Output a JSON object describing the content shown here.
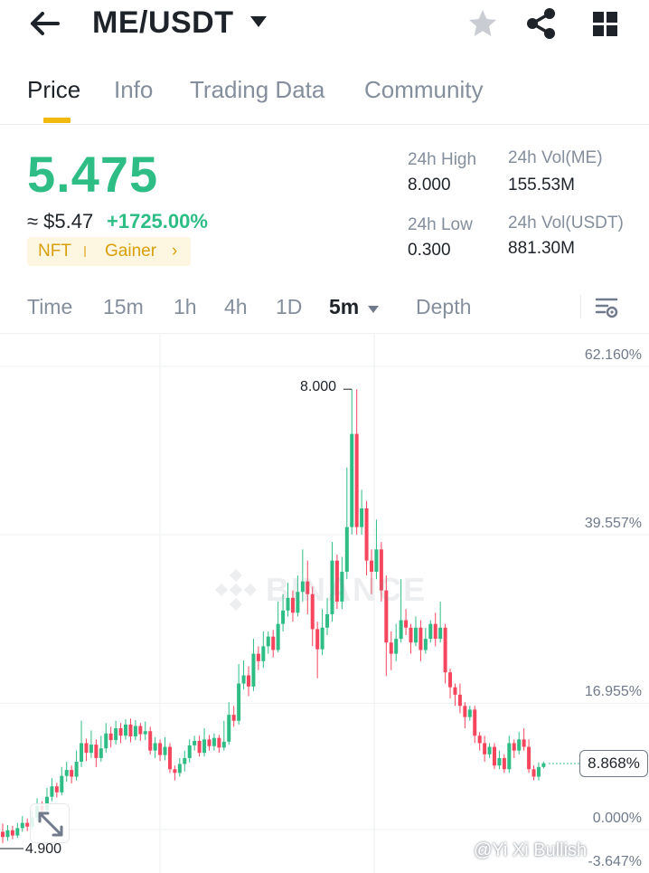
{
  "header": {
    "pair": "ME/USDT",
    "icons": [
      "back-arrow-icon",
      "caret-down-icon",
      "star-icon",
      "share-icon",
      "grid-icon"
    ]
  },
  "tabs": [
    {
      "label": "Price",
      "active": true
    },
    {
      "label": "Info",
      "active": false
    },
    {
      "label": "Trading Data",
      "active": false
    },
    {
      "label": "Community",
      "active": false
    }
  ],
  "price": {
    "last": "5.475",
    "fiat": "≈ $5.47",
    "change": "+1725.00%",
    "up_color": "#2ebd85",
    "down_color": "#f6465d"
  },
  "badges": {
    "nft": "NFT",
    "gainer": "Gainer",
    "chevron": "›"
  },
  "stats": {
    "high_label": "24h High",
    "high_value": "8.000",
    "low_label": "24h Low",
    "low_value": "0.300",
    "vol_base_label": "24h Vol(ME)",
    "vol_base_value": "155.53M",
    "vol_quote_label": "24h Vol(USDT)",
    "vol_quote_value": "881.30M"
  },
  "intervals": {
    "time": "Time",
    "m15": "15m",
    "h1": "1h",
    "h4": "4h",
    "d1": "1D",
    "selected": "5m",
    "depth": "Depth"
  },
  "chart": {
    "y_labels": [
      "62.160%",
      "39.557%",
      "16.955%",
      "0.000%",
      "-3.647%"
    ],
    "current": "8.868%",
    "high_marker": "8.000",
    "low_marker": "4.900",
    "watermark": "BINANCE",
    "credit": "@Yi Xi Bullish",
    "accent": "#f0b90b"
  },
  "chart_data": {
    "type": "candlestick",
    "y_unit": "%",
    "y_ticks": [
      62.16,
      39.557,
      16.955,
      0.0,
      -3.647
    ],
    "current": 8.868,
    "candles": [
      [
        -0.3,
        -1.0,
        0.8,
        -1.8
      ],
      [
        -1.0,
        -0.1,
        0.6,
        -1.5
      ],
      [
        -0.1,
        -0.8,
        0.5,
        -1.3
      ],
      [
        -0.8,
        0.2,
        0.9,
        -1.1
      ],
      [
        0.2,
        0.9,
        1.8,
        -0.3
      ],
      [
        0.9,
        0.4,
        1.5,
        -0.2
      ],
      [
        0.4,
        1.6,
        2.4,
        0.0
      ],
      [
        1.6,
        3.2,
        4.2,
        1.2
      ],
      [
        3.2,
        2.6,
        3.8,
        1.9
      ],
      [
        2.6,
        4.4,
        5.6,
        2.1
      ],
      [
        4.4,
        5.8,
        6.9,
        3.8
      ],
      [
        5.8,
        5.0,
        6.3,
        4.3
      ],
      [
        5.0,
        7.2,
        8.4,
        4.6
      ],
      [
        7.2,
        8.0,
        9.1,
        6.4
      ],
      [
        8.0,
        7.1,
        8.6,
        6.2
      ],
      [
        7.1,
        9.1,
        10.6,
        6.6
      ],
      [
        9.1,
        11.6,
        14.6,
        8.4
      ],
      [
        11.6,
        10.3,
        12.2,
        9.2
      ],
      [
        10.3,
        11.4,
        13.3,
        9.6
      ],
      [
        11.4,
        9.6,
        12.1,
        8.4
      ],
      [
        9.6,
        10.9,
        12.6,
        9.1
      ],
      [
        10.9,
        12.9,
        14.3,
        10.3
      ],
      [
        12.9,
        12.0,
        13.8,
        11.0
      ],
      [
        12.0,
        13.6,
        14.6,
        11.4
      ],
      [
        13.6,
        12.6,
        14.3,
        11.6
      ],
      [
        12.6,
        14.1,
        14.8,
        12.1
      ],
      [
        14.1,
        12.5,
        14.9,
        11.7
      ],
      [
        12.5,
        13.9,
        14.7,
        12.0
      ],
      [
        13.9,
        12.8,
        14.3,
        11.9
      ],
      [
        12.8,
        13.2,
        14.5,
        12.0
      ],
      [
        13.2,
        10.6,
        13.8,
        10.1
      ],
      [
        10.6,
        11.6,
        12.4,
        9.6
      ],
      [
        11.6,
        10.0,
        12.1,
        9.2
      ],
      [
        10.0,
        11.1,
        12.4,
        9.3
      ],
      [
        11.1,
        8.1,
        11.6,
        7.6
      ],
      [
        8.1,
        7.6,
        8.6,
        6.6
      ],
      [
        7.6,
        8.8,
        9.6,
        7.1
      ],
      [
        8.8,
        9.6,
        10.6,
        7.8
      ],
      [
        9.6,
        11.3,
        12.1,
        9.0
      ],
      [
        11.3,
        11.9,
        12.6,
        10.6
      ],
      [
        11.9,
        10.3,
        12.6,
        9.8
      ],
      [
        10.3,
        12.1,
        13.6,
        9.8
      ],
      [
        12.1,
        11.2,
        12.7,
        10.6
      ],
      [
        11.2,
        12.3,
        12.9,
        10.6
      ],
      [
        12.3,
        11.0,
        12.7,
        10.3
      ],
      [
        11.0,
        11.8,
        14.6,
        10.6
      ],
      [
        11.8,
        15.4,
        17.1,
        11.4
      ],
      [
        15.4,
        14.6,
        16.6,
        13.8
      ],
      [
        14.6,
        19.6,
        22.2,
        14.1
      ],
      [
        19.6,
        20.7,
        22.7,
        18.8
      ],
      [
        20.7,
        19.2,
        21.9,
        17.9
      ],
      [
        19.2,
        23.6,
        25.6,
        18.6
      ],
      [
        23.6,
        22.6,
        24.6,
        21.4
      ],
      [
        22.6,
        24.6,
        26.6,
        21.7
      ],
      [
        24.6,
        25.9,
        26.6,
        23.6
      ],
      [
        25.9,
        24.1,
        26.8,
        23.1
      ],
      [
        24.1,
        27.6,
        30.6,
        23.8
      ],
      [
        27.6,
        29.4,
        31.6,
        26.6
      ],
      [
        29.4,
        31.1,
        33.1,
        28.6
      ],
      [
        31.1,
        29.1,
        32.1,
        27.9
      ],
      [
        29.1,
        31.9,
        34.1,
        28.6
      ],
      [
        31.9,
        33.3,
        37.6,
        30.6
      ],
      [
        33.3,
        31.6,
        36.1,
        28.9
      ],
      [
        31.6,
        26.9,
        32.6,
        24.6
      ],
      [
        26.9,
        24.2,
        27.9,
        20.3
      ],
      [
        24.2,
        27.1,
        29.6,
        23.4
      ],
      [
        27.1,
        28.9,
        31.1,
        26.1
      ],
      [
        28.9,
        36.1,
        38.6,
        27.9
      ],
      [
        36.1,
        30.6,
        36.9,
        29.6
      ],
      [
        30.6,
        34.6,
        36.6,
        29.6
      ],
      [
        34.6,
        40.6,
        48.6,
        33.6
      ],
      [
        40.6,
        53.1,
        59.1,
        39.6
      ],
      [
        53.1,
        40.6,
        59.1,
        39.6
      ],
      [
        40.6,
        43.1,
        45.6,
        39.6
      ],
      [
        43.1,
        36.1,
        44.1,
        34.1
      ],
      [
        36.1,
        34.6,
        37.6,
        31.6
      ],
      [
        34.6,
        37.6,
        41.6,
        33.6
      ],
      [
        37.6,
        32.1,
        38.6,
        30.6
      ],
      [
        32.1,
        25.1,
        34.1,
        20.6
      ],
      [
        25.1,
        23.6,
        26.6,
        21.4
      ],
      [
        23.6,
        25.6,
        27.6,
        22.6
      ],
      [
        25.6,
        28.1,
        33.6,
        25.1
      ],
      [
        28.1,
        27.1,
        29.6,
        26.1
      ],
      [
        27.1,
        25.1,
        27.6,
        23.6
      ],
      [
        25.1,
        27.1,
        28.6,
        24.6
      ],
      [
        27.1,
        24.1,
        28.1,
        22.6
      ],
      [
        24.1,
        25.6,
        27.1,
        23.6
      ],
      [
        25.6,
        27.6,
        28.1,
        25.1
      ],
      [
        27.6,
        25.6,
        29.1,
        24.6
      ],
      [
        25.6,
        27.1,
        30.6,
        25.1
      ],
      [
        27.1,
        21.1,
        27.6,
        19.6
      ],
      [
        21.1,
        19.1,
        21.6,
        17.6
      ],
      [
        19.1,
        18.1,
        19.6,
        16.6
      ],
      [
        18.1,
        16.6,
        19.6,
        15.6
      ],
      [
        16.6,
        15.1,
        17.1,
        13.6
      ],
      [
        15.1,
        16.1,
        16.6,
        14.6
      ],
      [
        16.1,
        12.6,
        16.6,
        11.6
      ],
      [
        12.6,
        11.6,
        13.1,
        10.6
      ],
      [
        11.6,
        10.1,
        12.6,
        9.1
      ],
      [
        10.1,
        11.1,
        11.6,
        9.6
      ],
      [
        11.1,
        8.6,
        11.6,
        8.1
      ],
      [
        8.6,
        9.6,
        10.6,
        8.1
      ],
      [
        9.6,
        8.1,
        10.1,
        7.6
      ],
      [
        8.1,
        11.6,
        12.6,
        7.6
      ],
      [
        11.6,
        10.6,
        12.1,
        9.6
      ],
      [
        10.6,
        12.1,
        13.1,
        10.1
      ],
      [
        12.1,
        11.1,
        13.6,
        10.6
      ],
      [
        11.1,
        8.1,
        12.1,
        7.6
      ],
      [
        8.1,
        7.1,
        8.6,
        6.6
      ],
      [
        7.1,
        8.4,
        9.0,
        6.6
      ],
      [
        8.4,
        8.9,
        9.1,
        8.2
      ]
    ]
  }
}
